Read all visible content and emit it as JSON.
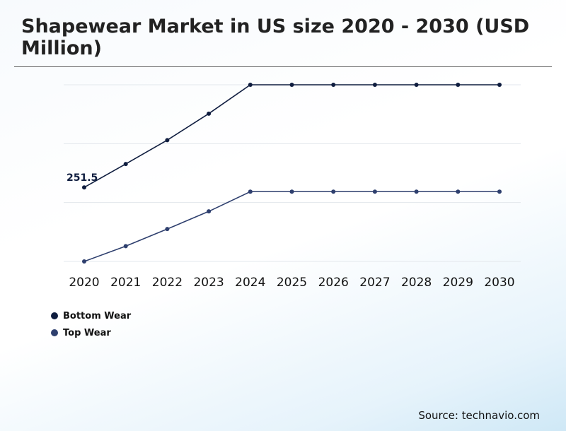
{
  "title": "Shapewear Market in US size 2020 - 2030 (USD Million)",
  "source": "Source: technavio.com",
  "chart_data": {
    "type": "line",
    "x": [
      "2020",
      "2021",
      "2022",
      "2023",
      "2024",
      "2025",
      "2026",
      "2027",
      "2028",
      "2029",
      "2030"
    ],
    "ylim": [
      0,
      600
    ],
    "grid": true,
    "legend_position": "bottom-left",
    "series": [
      {
        "name": "Bottom Wear",
        "color": "#0f1d3f",
        "values": [
          251.5,
          331,
          412,
          502,
          600,
          600,
          600,
          600,
          600,
          600,
          600
        ]
      },
      {
        "name": "Top Wear",
        "color": "#2e3f6e",
        "values": [
          0,
          52,
          110,
          170,
          237,
          237,
          237,
          237,
          237,
          237,
          237
        ]
      }
    ],
    "data_labels": [
      {
        "series": 0,
        "index": 0,
        "text": "251.5"
      }
    ]
  }
}
